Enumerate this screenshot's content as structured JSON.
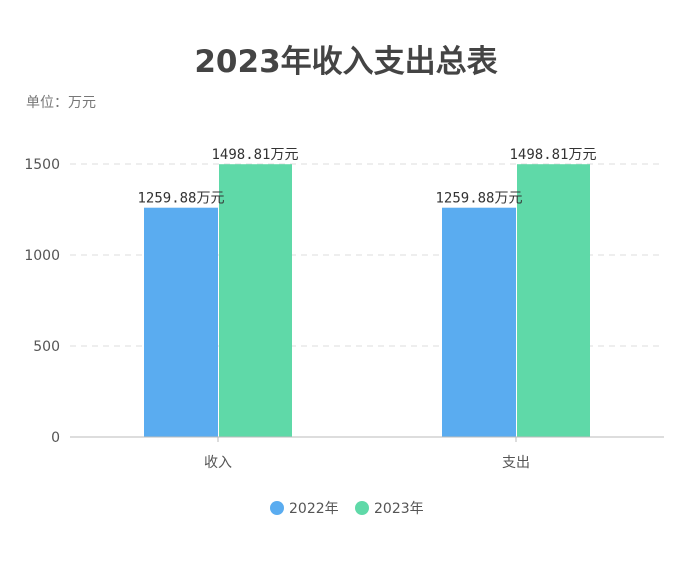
{
  "chart_data": {
    "type": "bar",
    "title": "2023年收入支出总表",
    "unit_label": "单位：万元",
    "categories": [
      "收入",
      "支出"
    ],
    "series": [
      {
        "name": "2022年",
        "values": [
          1259.88,
          1259.88
        ],
        "labels": [
          "1259.88万元",
          "1259.88万元"
        ],
        "color": "#5aacf0"
      },
      {
        "name": "2023年",
        "values": [
          1498.81,
          1498.81
        ],
        "labels": [
          "1498.81万元",
          "1498.81万元"
        ],
        "color": "#5fd9a8"
      }
    ],
    "yticks": [
      "0",
      "500",
      "1000",
      "1500"
    ],
    "ylim": [
      0,
      1500
    ],
    "grid": true,
    "legend_position": "bottom"
  }
}
